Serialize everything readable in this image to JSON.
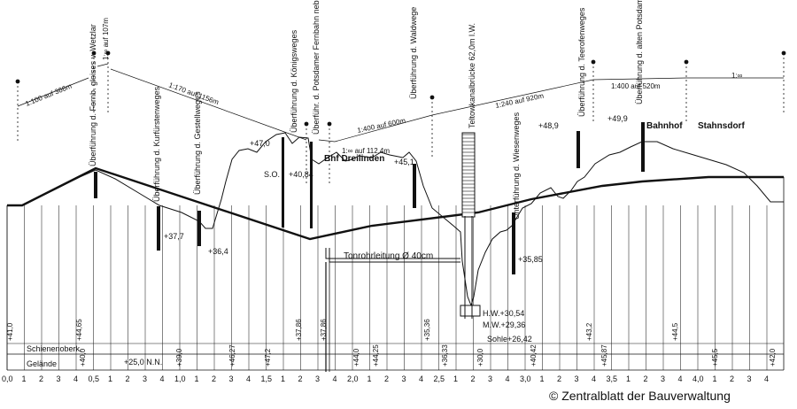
{
  "colors": {
    "line": "#111111",
    "paper": "#ffffff"
  },
  "gradients": [
    {
      "text": "1:100 auf 366m"
    },
    {
      "text": "1:∞ auf 107m"
    },
    {
      "text": "1:170 auf 1156m"
    },
    {
      "text": "1:∞ auf 112,4m"
    },
    {
      "text": "1:400 auf 600m"
    },
    {
      "text": "1:240 auf 920m"
    },
    {
      "text": "1:400 auf 520m"
    },
    {
      "text": "1:∞"
    }
  ],
  "structures": [
    {
      "text": "Überführung d. Fernb. gleises v. Wetzlar"
    },
    {
      "text": "Überführung d. Kurfürstenweges"
    },
    {
      "text": "Überführung d. Gestellweges"
    },
    {
      "text": "Überführung d. Königsweges"
    },
    {
      "text": "Überführ. d. Potsdamer Fernbahn nebst Seitenweg"
    },
    {
      "text": "Überführung d. Waldwege"
    },
    {
      "text": "Teltowkanalbrücke 62,0m l.W."
    },
    {
      "text": "Unterführung d. Wiesenweges"
    },
    {
      "text": "Überführung d. Teerofenweges"
    },
    {
      "text": "Überführung d. alten Potsdamer Landstr."
    }
  ],
  "places": {
    "dreilinden": "Bhf Dreilinden",
    "bahnhof": "Bahnhof",
    "stahnsdorf": "Stahnsdorf"
  },
  "elevations": {
    "e47_0": "+47,0",
    "e40_84": "+40,84",
    "e45_1": "+45,1",
    "e48_9": "+48,9",
    "e49_9": "+49,9",
    "e37_7": "+37,7",
    "e36_4": "+36,4",
    "e35_85": "+35,85",
    "so": "S.O.",
    "hw": "H.W.+30,54",
    "mw": "M.W.+29,36",
    "sohle": "Sohle+26,42"
  },
  "pipe": "Tonrohrleitung Ø 40cm",
  "rows": {
    "schienen": "Schienenoberk.",
    "gelaende": "Gelände",
    "nn": "+25,0 N.N."
  },
  "heights": {
    "h1": "+41,0",
    "h2": "+44,65",
    "h3": "+40,0",
    "h4": "+39,0",
    "h5": "+46,27",
    "h6": "+47,2",
    "h7": "+37,86",
    "h8": "+37,86",
    "h9": "+44,0",
    "h10": "+44,25",
    "h11": "+35,36",
    "h12": "+36,33",
    "h13": "+30,0",
    "h14": "+40,42",
    "h15": "+43,2",
    "h16": "+45,87",
    "h17": "+44,5",
    "h18": "+45,5",
    "h19": "+42,0"
  },
  "km_major": [
    "0,0",
    "0,5",
    "1,0",
    "1,5",
    "2,0",
    "2,5",
    "3,0",
    "3,5",
    "4,0"
  ],
  "km_minor": [
    "1",
    "2",
    "3",
    "4"
  ],
  "copyright": "© Zentralblatt der Bauverwaltung"
}
